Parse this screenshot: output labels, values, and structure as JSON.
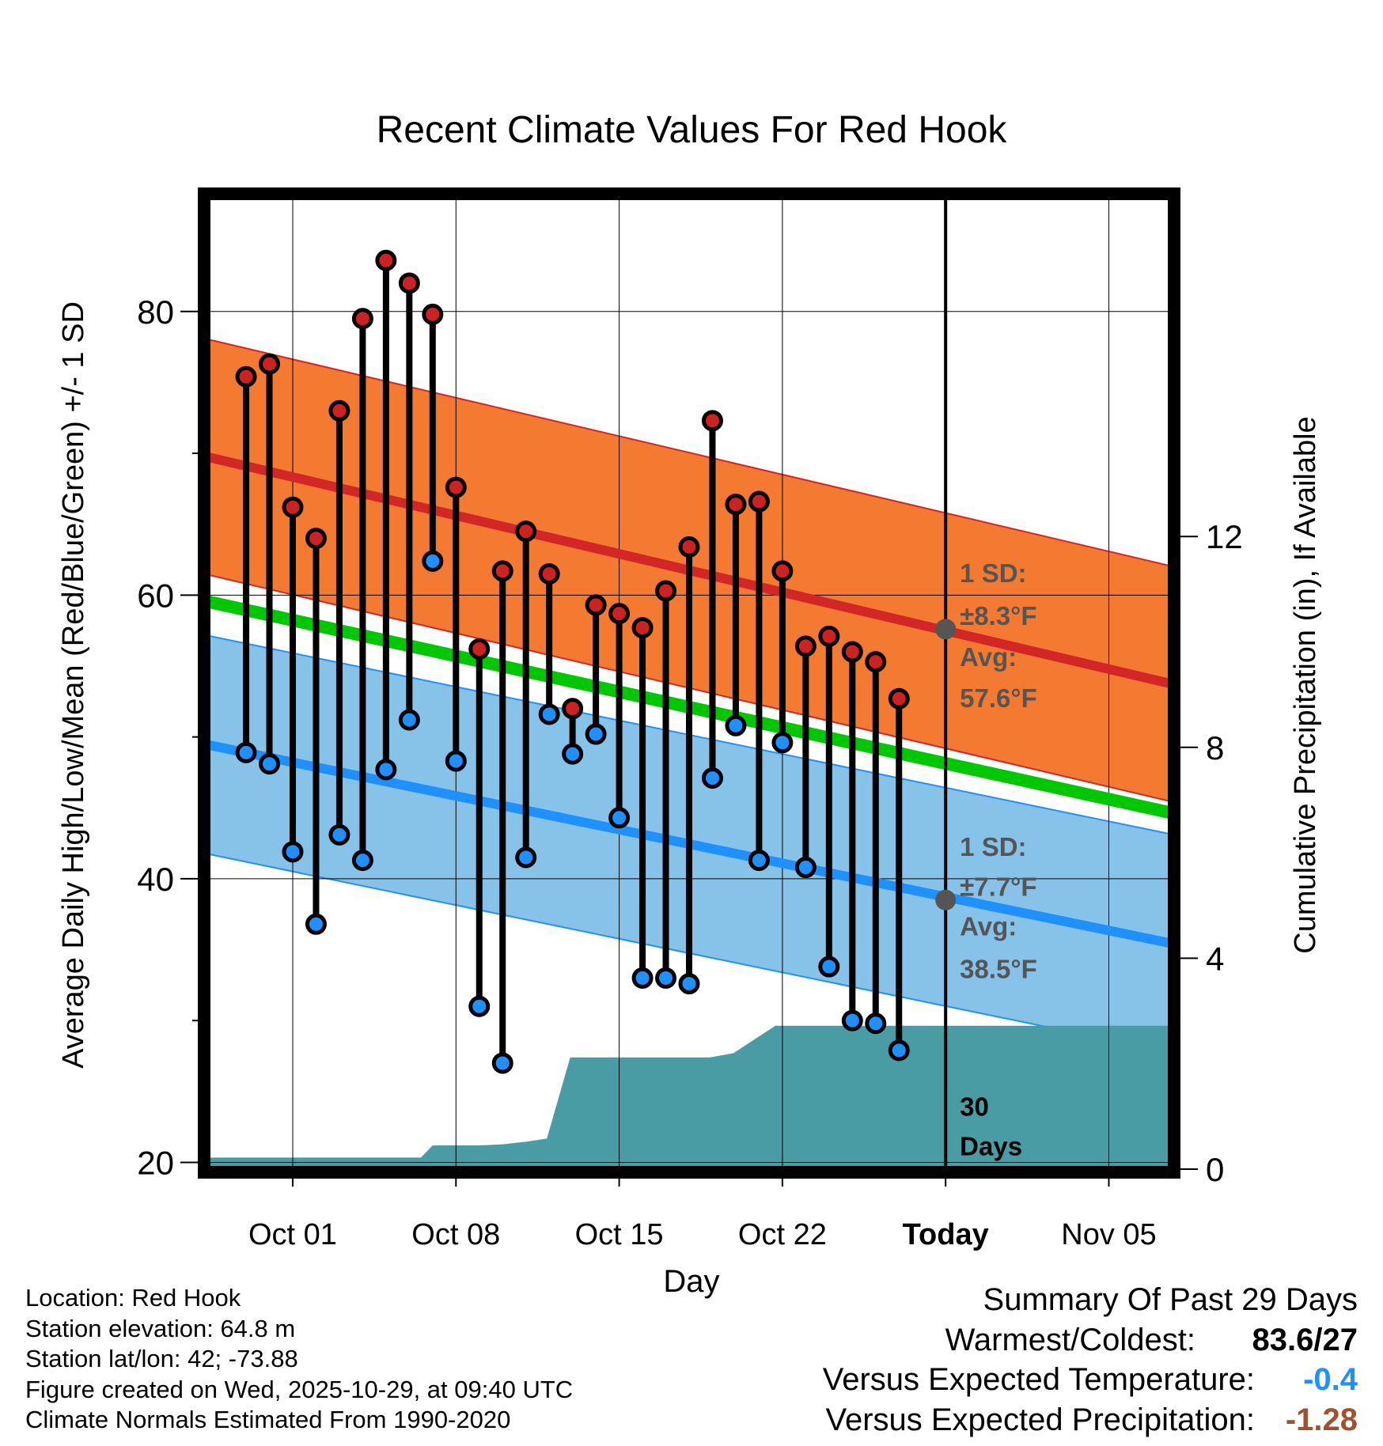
{
  "colors": {
    "high_band": "#f47a32",
    "high_band_edge": "#d32626",
    "high_mean": "#d32626",
    "low_band": "#87c3e8",
    "low_band_edge": "#1e90ff",
    "low_mean": "#1e90ff",
    "mean_line": "#00c800",
    "precip_fill": "#4a9ca4",
    "high_marker": "#cc2222",
    "low_marker": "#1e90ff",
    "annotation": "#555555",
    "temp_diff": "#1e90ff",
    "precip_diff": "#a0522d"
  },
  "chart_data": {
    "type": "range-bar",
    "title": "Recent Climate Values For Red Hook",
    "xlabel": "Day",
    "ylabel_left": "Average Daily High/Low/Mean (Red/Blue/Green) +/- 1 SD",
    "ylabel_right": "Cumulative Precipitation (in), If Available",
    "x_domain": [
      -2.8,
      38.8
    ],
    "x_ticks": [
      {
        "day": 1,
        "label": "Oct 01"
      },
      {
        "day": 8,
        "label": "Oct 08"
      },
      {
        "day": 15,
        "label": "Oct 15"
      },
      {
        "day": 22,
        "label": "Oct 22"
      },
      {
        "day": 29,
        "label": "Today"
      },
      {
        "day": 36,
        "label": "Nov 05"
      }
    ],
    "y_left_range": [
      19.3,
      88.3
    ],
    "y_left_ticks": [
      20,
      40,
      60,
      80
    ],
    "y_left_minor_ticks": [
      30,
      50,
      70
    ],
    "y_right_range": [
      -0.06,
      18.5
    ],
    "y_right_ticks": [
      0,
      4,
      8,
      12
    ],
    "today_day": 29,
    "normal_high": {
      "start": 69.8,
      "end": 53.7,
      "sd": 8.3
    },
    "normal_low": {
      "start": 49.5,
      "end": 35.4,
      "sd": 7.7
    },
    "normal_mean": {
      "start": 59.6,
      "end": 44.6
    },
    "daily": [
      {
        "day": -1,
        "high": 75.4,
        "low": 48.9
      },
      {
        "day": 0,
        "high": 76.3,
        "low": 48.1
      },
      {
        "day": 1,
        "high": 66.2,
        "low": 41.9
      },
      {
        "day": 2,
        "high": 64.0,
        "low": 36.8
      },
      {
        "day": 3,
        "high": 73.0,
        "low": 43.1
      },
      {
        "day": 4,
        "high": 79.5,
        "low": 41.3
      },
      {
        "day": 5,
        "high": 83.6,
        "low": 47.7
      },
      {
        "day": 6,
        "high": 82.0,
        "low": 51.2
      },
      {
        "day": 7,
        "high": 79.8,
        "low": 62.4
      },
      {
        "day": 8,
        "high": 67.6,
        "low": 48.3
      },
      {
        "day": 9,
        "high": 56.2,
        "low": 31.0
      },
      {
        "day": 10,
        "high": 61.7,
        "low": 27.0
      },
      {
        "day": 11,
        "high": 64.5,
        "low": 41.5
      },
      {
        "day": 12,
        "high": 61.5,
        "low": 51.6
      },
      {
        "day": 13,
        "high": 52.0,
        "low": 48.8
      },
      {
        "day": 14,
        "high": 59.3,
        "low": 50.2
      },
      {
        "day": 15,
        "high": 58.7,
        "low": 44.3
      },
      {
        "day": 16,
        "high": 57.7,
        "low": 33.0
      },
      {
        "day": 17,
        "high": 60.3,
        "low": 33.0
      },
      {
        "day": 18,
        "high": 63.4,
        "low": 32.6
      },
      {
        "day": 19,
        "high": 72.3,
        "low": 47.1
      },
      {
        "day": 20,
        "high": 66.4,
        "low": 50.8
      },
      {
        "day": 21,
        "high": 66.6,
        "low": 41.3
      },
      {
        "day": 22,
        "high": 61.7,
        "low": 49.6
      },
      {
        "day": 23,
        "high": 56.4,
        "low": 40.8
      },
      {
        "day": 24,
        "high": 57.1,
        "low": 33.8
      },
      {
        "day": 25,
        "high": 56.0,
        "low": 30.0
      },
      {
        "day": 26,
        "high": 55.3,
        "low": 29.8
      },
      {
        "day": 27,
        "high": 52.7,
        "low": 27.9
      }
    ],
    "precip_cumulative": [
      {
        "day": -2.8,
        "value": 0.22
      },
      {
        "day": 6.5,
        "value": 0.22
      },
      {
        "day": 7.0,
        "value": 0.45
      },
      {
        "day": 9.0,
        "value": 0.45
      },
      {
        "day": 10.0,
        "value": 0.47
      },
      {
        "day": 11.0,
        "value": 0.52
      },
      {
        "day": 11.9,
        "value": 0.58
      },
      {
        "day": 12.9,
        "value": 2.12
      },
      {
        "day": 18.9,
        "value": 2.12
      },
      {
        "day": 19.9,
        "value": 2.2
      },
      {
        "day": 21.7,
        "value": 2.72
      },
      {
        "day": 38.8,
        "value": 2.72
      }
    ],
    "annotations": {
      "high_sd_label": "1 SD:",
      "high_sd_value": "±8.3°F",
      "high_avg_label": "Avg:",
      "high_avg_value": "57.6°F",
      "low_sd_label": "1 SD:",
      "low_sd_value": "±7.7°F",
      "low_avg_label": "Avg:",
      "low_avg_value": "38.5°F",
      "days_count": "30",
      "days_label": "Days"
    },
    "today_high_avg": 57.6,
    "today_low_avg": 38.5
  },
  "info": {
    "location": "Location: Red Hook",
    "elevation": "Station elevation: 64.8 m",
    "latlon": "Station lat/lon: 42; -73.88",
    "created": "Figure created on Wed, 2025-10-29, at 09:40 UTC",
    "normals": "Climate Normals Estimated From 1990-2020"
  },
  "summary": {
    "title": "Summary Of Past 29 Days",
    "warmest_label": "Warmest/Coldest:",
    "warmest_value": "83.6/27",
    "temp_label": "Versus Expected Temperature:",
    "temp_value": "-0.4",
    "precip_label": "Versus Expected Precipitation:",
    "precip_value": "-1.28"
  }
}
